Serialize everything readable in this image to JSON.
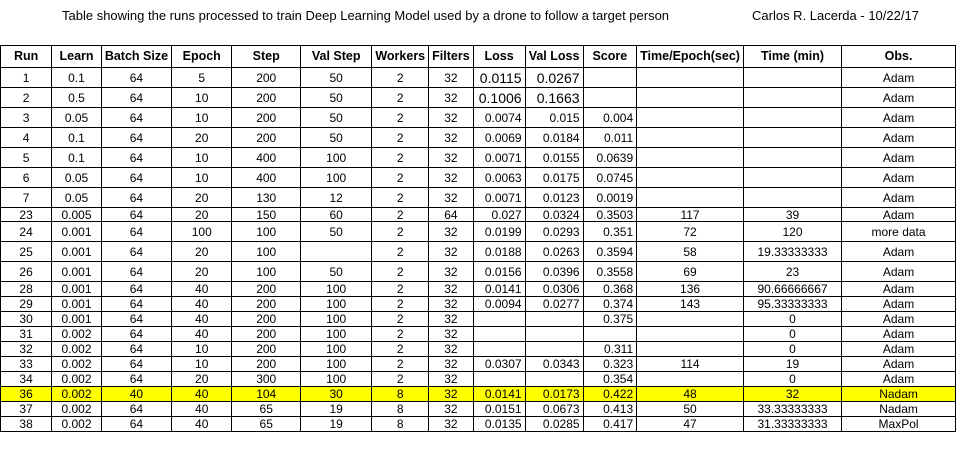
{
  "title": "Table showing the runs processed to train Deep Learning Model used by a drone to follow a target person",
  "author": "Carlos R. Lacerda - 10/22/17",
  "columns": [
    "Run",
    "Learn",
    "Batch Size",
    "Epoch",
    "Step",
    "Val Step",
    "Workers",
    "Filters",
    "Loss",
    "Val Loss",
    "Score",
    "Time/Epoch(sec)",
    "Time (min)",
    "Obs."
  ],
  "rows": [
    {
      "run": "1",
      "learn": "0.1",
      "batch": "64",
      "epoch": "5",
      "step": "200",
      "val_step": "50",
      "workers": "2",
      "filters": "32",
      "loss": "0.0115",
      "val_loss": "0.0267",
      "score": "",
      "time_epoch": "",
      "time_min": "",
      "obs": "Adam",
      "style": "tall",
      "big": true
    },
    {
      "run": "2",
      "learn": "0.5",
      "batch": "64",
      "epoch": "10",
      "step": "200",
      "val_step": "50",
      "workers": "2",
      "filters": "32",
      "loss": "0.1006",
      "val_loss": "0.1663",
      "score": "",
      "time_epoch": "",
      "time_min": "",
      "obs": "Adam",
      "style": "tall",
      "big": true
    },
    {
      "run": "3",
      "learn": "0.05",
      "batch": "64",
      "epoch": "10",
      "step": "200",
      "val_step": "50",
      "workers": "2",
      "filters": "32",
      "loss": "0.0074",
      "val_loss": "0.015",
      "score": "0.004",
      "time_epoch": "",
      "time_min": "",
      "obs": "Adam",
      "style": "tall"
    },
    {
      "run": "4",
      "learn": "0.1",
      "batch": "64",
      "epoch": "20",
      "step": "200",
      "val_step": "50",
      "workers": "2",
      "filters": "32",
      "loss": "0.0069",
      "val_loss": "0.0184",
      "score": "0.011",
      "time_epoch": "",
      "time_min": "",
      "obs": "Adam",
      "style": "tall"
    },
    {
      "run": "5",
      "learn": "0.1",
      "batch": "64",
      "epoch": "10",
      "step": "400",
      "val_step": "100",
      "workers": "2",
      "filters": "32",
      "loss": "0.0071",
      "val_loss": "0.0155",
      "score": "0.0639",
      "time_epoch": "",
      "time_min": "",
      "obs": "Adam",
      "style": "tall"
    },
    {
      "run": "6",
      "learn": "0.05",
      "batch": "64",
      "epoch": "10",
      "step": "400",
      "val_step": "100",
      "workers": "2",
      "filters": "32",
      "loss": "0.0063",
      "val_loss": "0.0175",
      "score": "0.0745",
      "time_epoch": "",
      "time_min": "",
      "obs": "Adam",
      "style": "tall"
    },
    {
      "run": "7",
      "learn": "0.05",
      "batch": "64",
      "epoch": "20",
      "step": "130",
      "val_step": "12",
      "workers": "2",
      "filters": "32",
      "loss": "0.0071",
      "val_loss": "0.0123",
      "score": "0.0019",
      "time_epoch": "",
      "time_min": "",
      "obs": "Adam",
      "style": "tall"
    },
    {
      "run": "23",
      "learn": "0.005",
      "batch": "64",
      "epoch": "20",
      "step": "150",
      "val_step": "60",
      "workers": "2",
      "filters": "64",
      "loss": "0.027",
      "val_loss": "0.0324",
      "score": "0.3503",
      "time_epoch": "117",
      "time_min": "39",
      "obs": "Adam",
      "style": "cut"
    },
    {
      "run": "24",
      "learn": "0.001",
      "batch": "64",
      "epoch": "100",
      "step": "100",
      "val_step": "50",
      "workers": "2",
      "filters": "32",
      "loss": "0.0199",
      "val_loss": "0.0293",
      "score": "0.351",
      "time_epoch": "72",
      "time_min": "120",
      "obs": "more data",
      "style": "tall"
    },
    {
      "run": "25",
      "learn": "0.001",
      "batch": "64",
      "epoch": "20",
      "step": "100",
      "val_step": "",
      "workers": "2",
      "filters": "32",
      "loss": "0.0188",
      "val_loss": "0.0263",
      "score": "0.3594",
      "time_epoch": "58",
      "time_min": "19.33333333",
      "obs": "Adam",
      "style": "tall"
    },
    {
      "run": "26",
      "learn": "0.001",
      "batch": "64",
      "epoch": "20",
      "step": "100",
      "val_step": "50",
      "workers": "2",
      "filters": "32",
      "loss": "0.0156",
      "val_loss": "0.0396",
      "score": "0.3558",
      "time_epoch": "69",
      "time_min": "23",
      "obs": "Adam",
      "style": "tall"
    },
    {
      "run": "28",
      "learn": "0.001",
      "batch": "64",
      "epoch": "40",
      "step": "200",
      "val_step": "100",
      "workers": "2",
      "filters": "32",
      "loss": "0.0141",
      "val_loss": "0.0306",
      "score": "0.368",
      "time_epoch": "136",
      "time_min": "90.66666667",
      "obs": "Adam",
      "style": "short"
    },
    {
      "run": "29",
      "learn": "0.001",
      "batch": "64",
      "epoch": "40",
      "step": "200",
      "val_step": "100",
      "workers": "2",
      "filters": "32",
      "loss": "0.0094",
      "val_loss": "0.0277",
      "score": "0.374",
      "time_epoch": "143",
      "time_min": "95.33333333",
      "obs": "Adam",
      "style": "short"
    },
    {
      "run": "30",
      "learn": "0.001",
      "batch": "64",
      "epoch": "40",
      "step": "200",
      "val_step": "100",
      "workers": "2",
      "filters": "32",
      "loss": "",
      "val_loss": "",
      "score": "0.375",
      "time_epoch": "",
      "time_min": "0",
      "obs": "Adam",
      "style": "short"
    },
    {
      "run": "31",
      "learn": "0.002",
      "batch": "64",
      "epoch": "40",
      "step": "200",
      "val_step": "100",
      "workers": "2",
      "filters": "32",
      "loss": "",
      "val_loss": "",
      "score": "",
      "time_epoch": "",
      "time_min": "0",
      "obs": "Adam",
      "style": "short"
    },
    {
      "run": "32",
      "learn": "0.002",
      "batch": "64",
      "epoch": "10",
      "step": "200",
      "val_step": "100",
      "workers": "2",
      "filters": "32",
      "loss": "",
      "val_loss": "",
      "score": "0.311",
      "time_epoch": "",
      "time_min": "0",
      "obs": "Adam",
      "style": "short"
    },
    {
      "run": "33",
      "learn": "0.002",
      "batch": "64",
      "epoch": "10",
      "step": "200",
      "val_step": "100",
      "workers": "2",
      "filters": "32",
      "loss": "0.0307",
      "val_loss": "0.0343",
      "score": "0.323",
      "time_epoch": "114",
      "time_min": "19",
      "obs": "Adam",
      "style": "short"
    },
    {
      "run": "34",
      "learn": "0.002",
      "batch": "64",
      "epoch": "20",
      "step": "300",
      "val_step": "100",
      "workers": "2",
      "filters": "32",
      "loss": "",
      "val_loss": "",
      "score": "0.354",
      "time_epoch": "",
      "time_min": "0",
      "obs": "Adam",
      "style": "short"
    },
    {
      "run": "36",
      "learn": "0.002",
      "batch": "40",
      "epoch": "40",
      "step": "104",
      "val_step": "30",
      "workers": "8",
      "filters": "32",
      "loss": "0.0141",
      "val_loss": "0.0173",
      "score": "0.422",
      "time_epoch": "48",
      "time_min": "32",
      "obs": "Nadam",
      "style": "short",
      "highlight": true
    },
    {
      "run": "37",
      "learn": "0.002",
      "batch": "64",
      "epoch": "40",
      "step": "65",
      "val_step": "19",
      "workers": "8",
      "filters": "32",
      "loss": "0.0151",
      "val_loss": "0.0673",
      "score": "0.413",
      "time_epoch": "50",
      "time_min": "33.33333333",
      "obs": "Nadam",
      "style": "short"
    },
    {
      "run": "38",
      "learn": "0.002",
      "batch": "64",
      "epoch": "40",
      "step": "65",
      "val_step": "19",
      "workers": "8",
      "filters": "32",
      "loss": "0.0135",
      "val_loss": "0.0285",
      "score": "0.417",
      "time_epoch": "47",
      "time_min": "31.33333333",
      "obs": "MaxPol",
      "style": "short"
    }
  ],
  "colors": {
    "highlight": "#ffff00",
    "grid": "#000000"
  }
}
